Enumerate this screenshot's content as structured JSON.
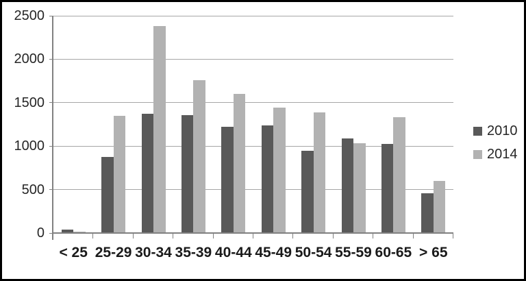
{
  "chart_data": {
    "type": "bar",
    "title": "",
    "categories": [
      "< 25",
      "25-29",
      "30-34",
      "35-39",
      "40-44",
      "45-49",
      "50-54",
      "55-59",
      "60-65",
      "> 65"
    ],
    "series": [
      {
        "name": "2010",
        "color": "#595959",
        "values": [
          40,
          875,
          1375,
          1360,
          1225,
          1235,
          950,
          1085,
          1025,
          460
        ]
      },
      {
        "name": "2014",
        "color": "#b2b2b2",
        "values": [
          15,
          1345,
          2385,
          1760,
          1600,
          1445,
          1390,
          1030,
          1330,
          600
        ]
      }
    ],
    "xlabel": "",
    "ylabel": "",
    "ylim": [
      0,
      2500
    ],
    "yticks": [
      0,
      500,
      1000,
      1500,
      2000,
      2500
    ],
    "grid": true,
    "legend_position": "right",
    "colors": {
      "gridline": "#a6a6a6",
      "axis": "#808080",
      "text": "#262626",
      "background": "#ffffff",
      "frame_border": "#000000"
    }
  }
}
